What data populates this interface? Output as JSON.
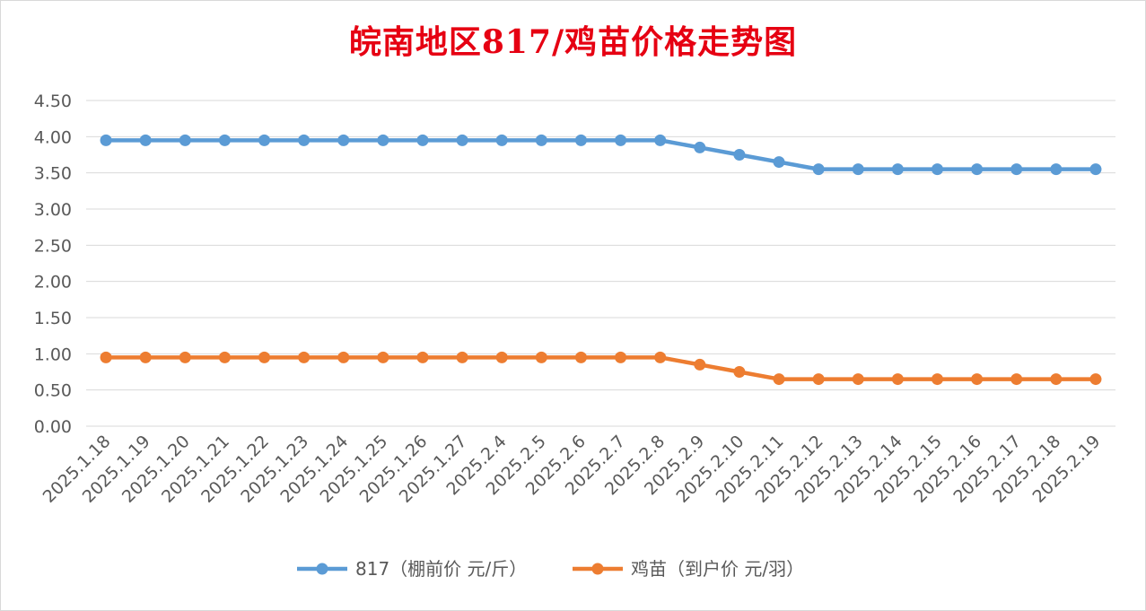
{
  "chart_data": {
    "type": "line",
    "title": "皖南地区817/鸡苗价格走势图",
    "xlabel": "",
    "ylabel": "",
    "ylim": [
      0,
      4.5
    ],
    "yticks": [
      "0.00",
      "0.50",
      "1.00",
      "1.50",
      "2.00",
      "2.50",
      "3.00",
      "3.50",
      "4.00",
      "4.50"
    ],
    "grid": true,
    "legend_position": "bottom",
    "categories": [
      "2025.1.18",
      "2025.1.19",
      "2025.1.20",
      "2025.1.21",
      "2025.1.22",
      "2025.1.23",
      "2025.1.24",
      "2025.1.25",
      "2025.1.26",
      "2025.1.27",
      "2025.2.4",
      "2025.2.5",
      "2025.2.6",
      "2025.2.7",
      "2025.2.8",
      "2025.2.9",
      "2025.2.10",
      "2025.2.11",
      "2025.2.12",
      "2025.2.13",
      "2025.2.14",
      "2025.2.15",
      "2025.2.16",
      "2025.2.17",
      "2025.2.18",
      "2025.2.19"
    ],
    "series": [
      {
        "name": "817（棚前价 元/斤）",
        "color": "#5b9bd5",
        "values": [
          3.95,
          3.95,
          3.95,
          3.95,
          3.95,
          3.95,
          3.95,
          3.95,
          3.95,
          3.95,
          3.95,
          3.95,
          3.95,
          3.95,
          3.95,
          3.85,
          3.75,
          3.65,
          3.55,
          3.55,
          3.55,
          3.55,
          3.55,
          3.55,
          3.55,
          3.55
        ]
      },
      {
        "name": "鸡苗（到户价 元/羽）",
        "color": "#ed7d31",
        "values": [
          0.95,
          0.95,
          0.95,
          0.95,
          0.95,
          0.95,
          0.95,
          0.95,
          0.95,
          0.95,
          0.95,
          0.95,
          0.95,
          0.95,
          0.95,
          0.85,
          0.75,
          0.65,
          0.65,
          0.65,
          0.65,
          0.65,
          0.65,
          0.65,
          0.65,
          0.65
        ]
      }
    ]
  }
}
